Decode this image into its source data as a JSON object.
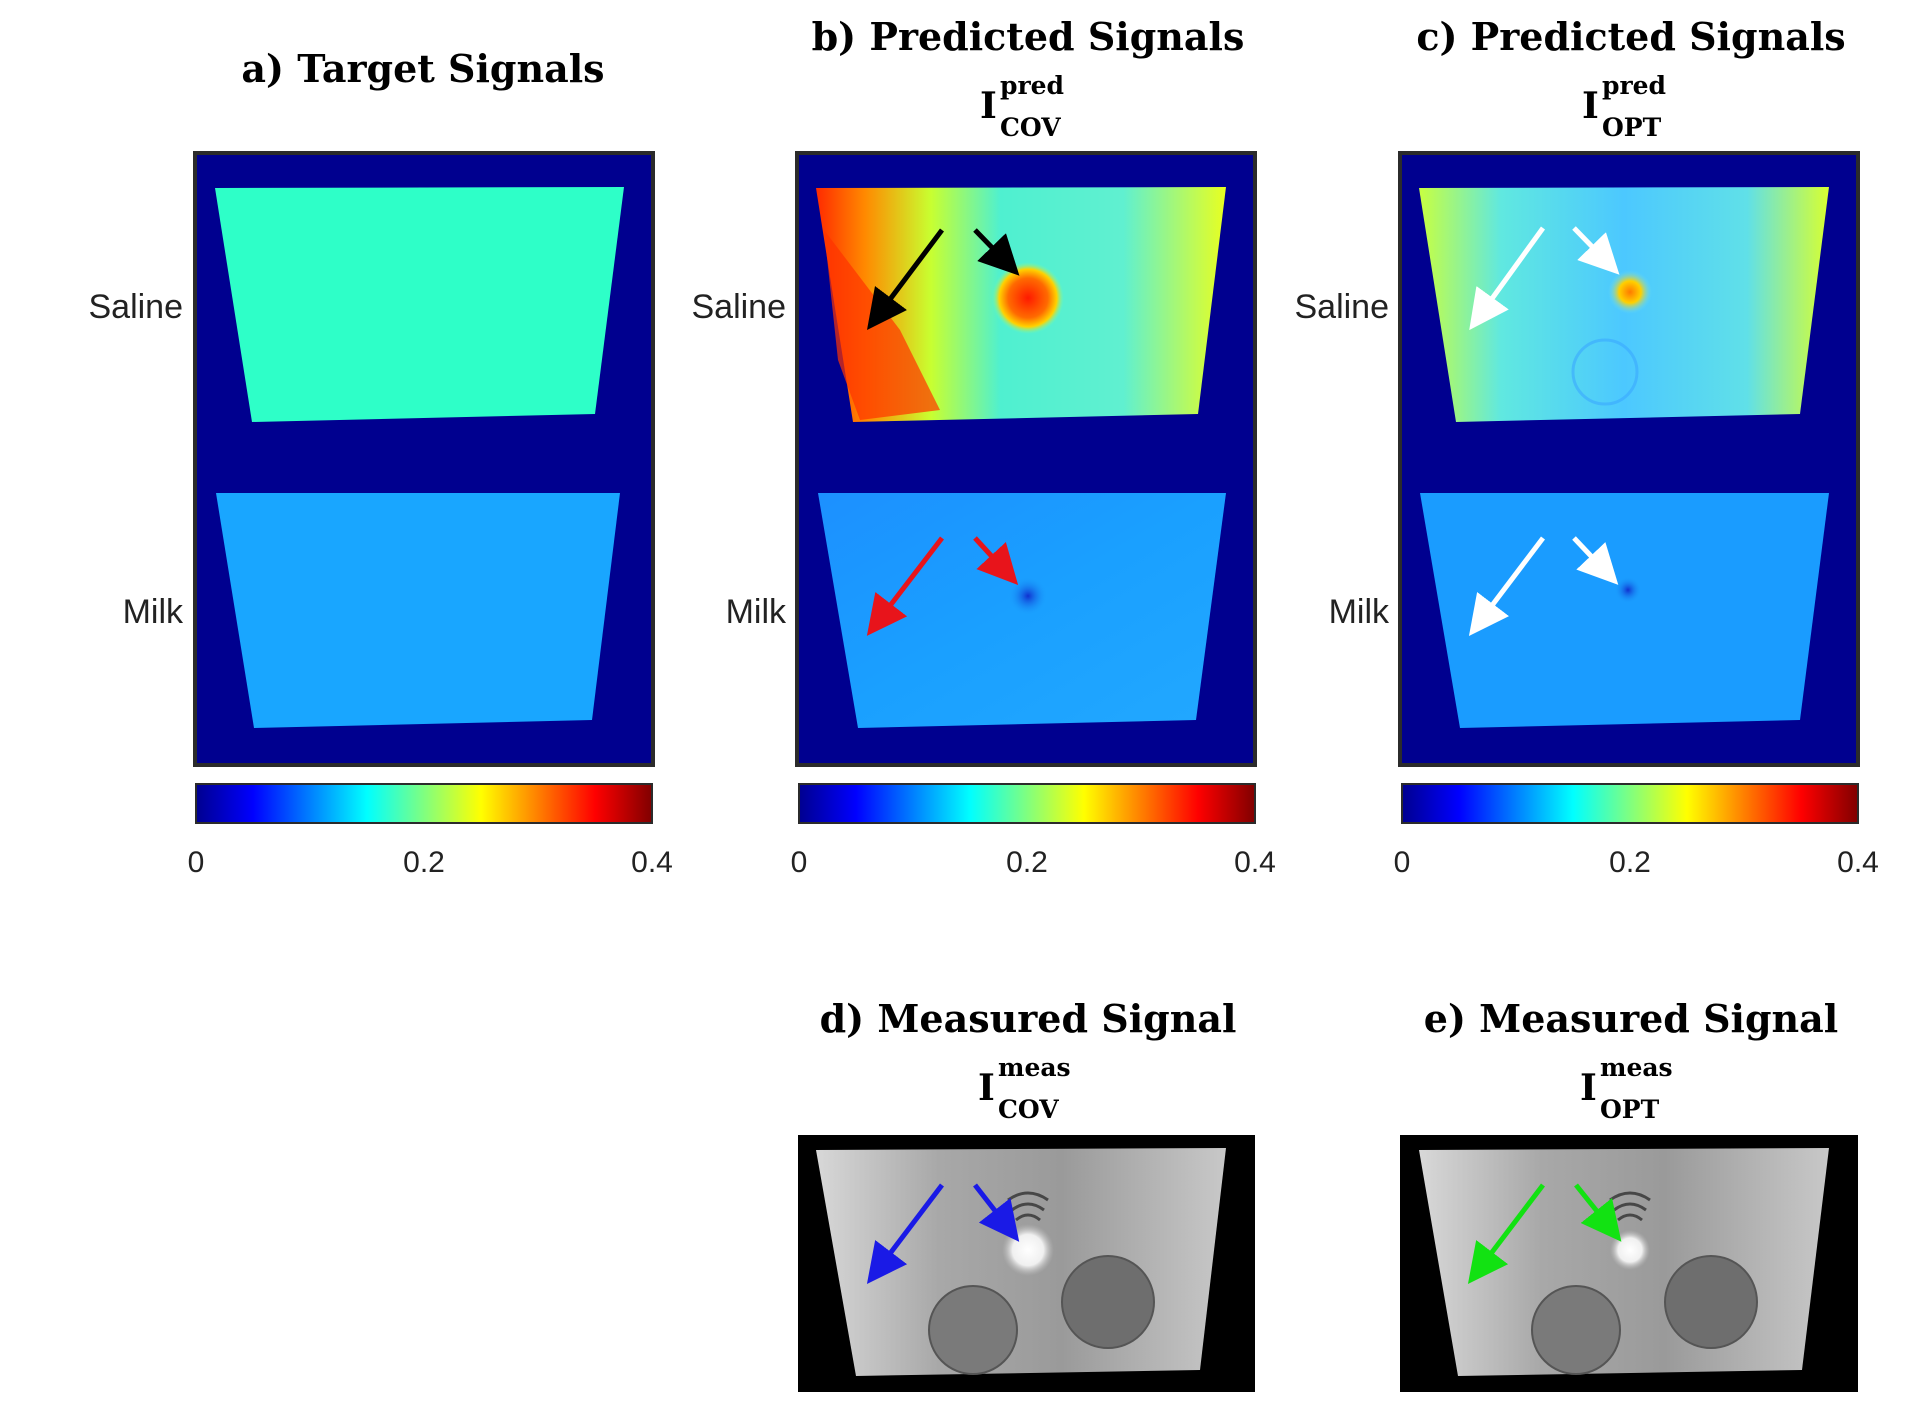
{
  "panels": [
    {
      "id": "a",
      "title": "a) Target Signals",
      "row_labels": [
        "Saline",
        "Milk"
      ],
      "colorbar_ticks": [
        "0",
        "0.2",
        "0.4"
      ]
    },
    {
      "id": "b",
      "title": "b) Predicted Signals",
      "symbol": "I",
      "superscript": "pred",
      "subscript": "COV",
      "row_labels": [
        "Saline",
        "Milk"
      ],
      "colorbar_ticks": [
        "0",
        "0.2",
        "0.4"
      ],
      "arrow_colors": [
        "#000000",
        "#e8141b"
      ]
    },
    {
      "id": "c",
      "title": "c) Predicted Signals",
      "symbol": "I",
      "superscript": "pred",
      "subscript": "OPT",
      "row_labels": [
        "Saline",
        "Milk"
      ],
      "colorbar_ticks": [
        "0",
        "0.2",
        "0.4"
      ],
      "arrow_colors": [
        "#ffffff",
        "#ffffff"
      ]
    },
    {
      "id": "d",
      "title": "d) Measured Signal",
      "symbol": "I",
      "superscript": "meas",
      "subscript": "COV",
      "arrow_colors": [
        "#1a1ae6"
      ]
    },
    {
      "id": "e",
      "title": "e) Measured Signal",
      "symbol": "I",
      "superscript": "meas",
      "subscript": "OPT",
      "arrow_colors": [
        "#12e212"
      ]
    }
  ],
  "colors": {
    "background": "#00008f",
    "saline_target": "#2effc8",
    "milk_target": "#19a6ff",
    "frame": "#2b2b2b"
  }
}
